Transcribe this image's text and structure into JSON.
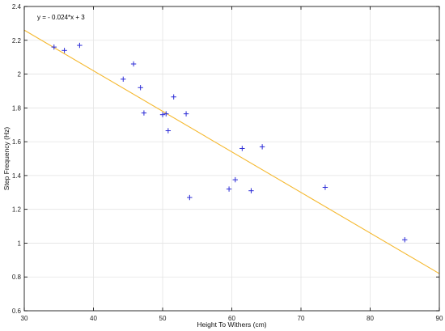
{
  "chart_data": {
    "type": "scatter",
    "xlabel": "Height To Withers (cm)",
    "ylabel": "Step Frequency (Hz)",
    "xlim": [
      30,
      90
    ],
    "ylim": [
      0.6,
      2.4
    ],
    "xticks": [
      30,
      40,
      50,
      60,
      70,
      80,
      90
    ],
    "yticks": [
      0.6,
      0.8,
      1,
      1.2,
      1.4,
      1.6,
      1.8,
      2,
      2.2,
      2.4
    ],
    "grid": true,
    "annotation": "y = - 0.024*x + 3",
    "colors": {
      "points": "#2b2bd6",
      "fit_line": "#f5b82e",
      "grid": "#e3e3e3",
      "axes": "#000000"
    },
    "series": [
      {
        "marker": "+",
        "points": [
          [
            34.3,
            2.16
          ],
          [
            35.8,
            2.14
          ],
          [
            38.0,
            2.17
          ],
          [
            44.3,
            1.97
          ],
          [
            45.8,
            2.06
          ],
          [
            46.8,
            1.92
          ],
          [
            47.3,
            1.77
          ],
          [
            50.0,
            1.76
          ],
          [
            50.5,
            1.765
          ],
          [
            50.8,
            1.665
          ],
          [
            51.6,
            1.865
          ],
          [
            53.4,
            1.765
          ],
          [
            53.9,
            1.27
          ],
          [
            59.6,
            1.32
          ],
          [
            60.5,
            1.375
          ],
          [
            61.5,
            1.56
          ],
          [
            62.8,
            1.31
          ],
          [
            64.4,
            1.57
          ],
          [
            73.5,
            1.33
          ],
          [
            85.0,
            1.02
          ]
        ]
      }
    ],
    "fit": {
      "slope": -0.024,
      "intercept": 2.98
    }
  }
}
